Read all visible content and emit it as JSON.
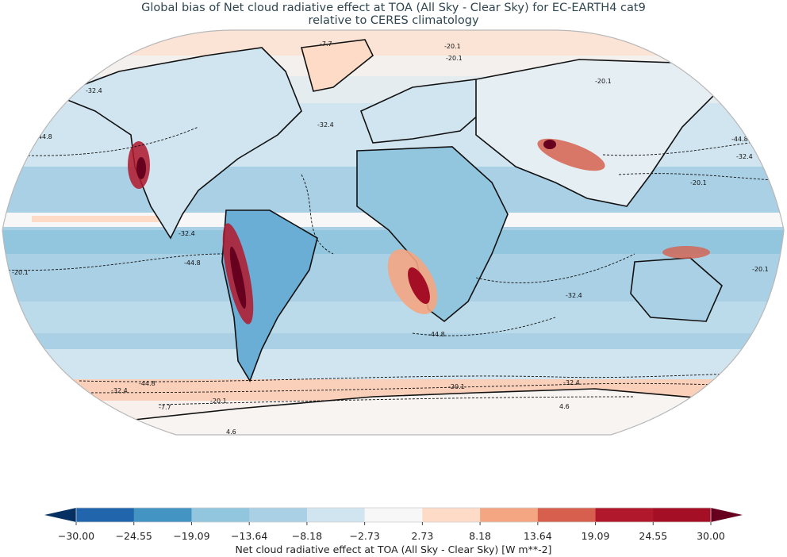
{
  "title": {
    "line1": "Global bias of Net cloud radiative effect at TOA (All Sky - Clear Sky) for EC-EARTH4 cat9",
    "line2": "relative to CERES climatology"
  },
  "colorbar": {
    "label": "Net cloud radiative effect at TOA (All Sky - Clear Sky) [W m**-2]",
    "ticks": [
      "−30.00",
      "−24.55",
      "−19.09",
      "−13.64",
      "−8.18",
      "−2.73",
      "2.73",
      "8.18",
      "13.64",
      "19.09",
      "24.55",
      "30.00"
    ],
    "colors": [
      "#053061",
      "#2166ac",
      "#4393c3",
      "#92c5de",
      "#a9d0e5",
      "#d1e5f0",
      "#f7f7f7",
      "#fddbc7",
      "#f4a582",
      "#d6604d",
      "#b2182b",
      "#a50f25",
      "#67001f"
    ],
    "extend": "both"
  },
  "chart_data": {
    "type": "heatmap",
    "title": "Global bias of Net cloud radiative effect at TOA (All Sky - Clear Sky) for EC-EARTH4 cat9 relative to CERES climatology",
    "projection": "Robinson (global map)",
    "colorbar_label": "Net cloud radiative effect at TOA (All Sky - Clear Sky) [W m**-2]",
    "colorbar_levels": [
      -30.0,
      -24.55,
      -19.09,
      -13.64,
      -8.18,
      -2.73,
      2.73,
      8.18,
      13.64,
      19.09,
      24.55,
      30.0
    ],
    "colormap": "RdBu_r (blue negative, red positive), extended both ends",
    "vrange": [
      -30,
      30
    ],
    "contour_levels_labeled": [
      -44.8,
      -32.4,
      -20.1,
      -7.7,
      4.6
    ],
    "contour_note": "Dashed contours = negative climatology values, solid = positive",
    "notable_features": [
      {
        "region": "Eastern Pacific off California / Baja",
        "bias": "strong positive (up to >30)"
      },
      {
        "region": "Peru / Chile coast (Andes)",
        "bias": "strong positive (up to >30)"
      },
      {
        "region": "Namibia / Angola coast (SE Atlantic)",
        "bias": "strong positive (~20-30)"
      },
      {
        "region": "Tibetan Plateau / Himalaya",
        "bias": "strong positive (~20-30)"
      },
      {
        "region": "Southern Ocean ~60S ring",
        "bias": "positive (~3-14)"
      },
      {
        "region": "Arctic / Greenland",
        "bias": "weak positive (~3-8)"
      },
      {
        "region": "Tropical and mid-latitude oceans",
        "bias": "negative (~-3 to -19)"
      },
      {
        "region": "Amazon / Central Africa land",
        "bias": "negative (~-14 to -25)"
      }
    ]
  }
}
